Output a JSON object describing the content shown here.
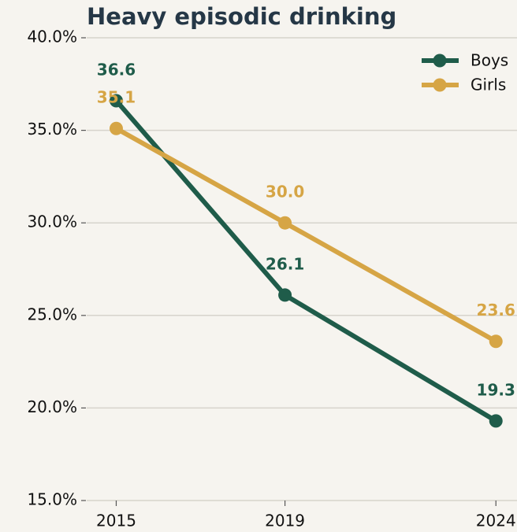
{
  "chart_data": {
    "type": "line",
    "title": "Heavy episodic drinking",
    "x": [
      2015,
      2019,
      2024
    ],
    "xlim": [
      2014.3,
      2024.5
    ],
    "xticks": [
      2015,
      2019,
      2024
    ],
    "ylim": [
      15,
      40
    ],
    "yticks": [
      {
        "value": 15,
        "label": "15.0%"
      },
      {
        "value": 20,
        "label": "20.0%"
      },
      {
        "value": 25,
        "label": "25.0%"
      },
      {
        "value": 30,
        "label": "30.0%"
      },
      {
        "value": 35,
        "label": "35.0%"
      },
      {
        "value": 40,
        "label": "40.0%"
      }
    ],
    "grid": true,
    "legend": "upper right",
    "series": [
      {
        "name": "Boys",
        "color": "#1f5c4a",
        "values": [
          36.6,
          26.1,
          19.3
        ],
        "value_labels": [
          "36.6",
          "26.1",
          "19.3"
        ]
      },
      {
        "name": "Girls",
        "color": "#d6a545",
        "values": [
          35.1,
          30.0,
          23.6
        ],
        "value_labels": [
          "35.1",
          "30.0",
          "23.6"
        ]
      }
    ]
  }
}
